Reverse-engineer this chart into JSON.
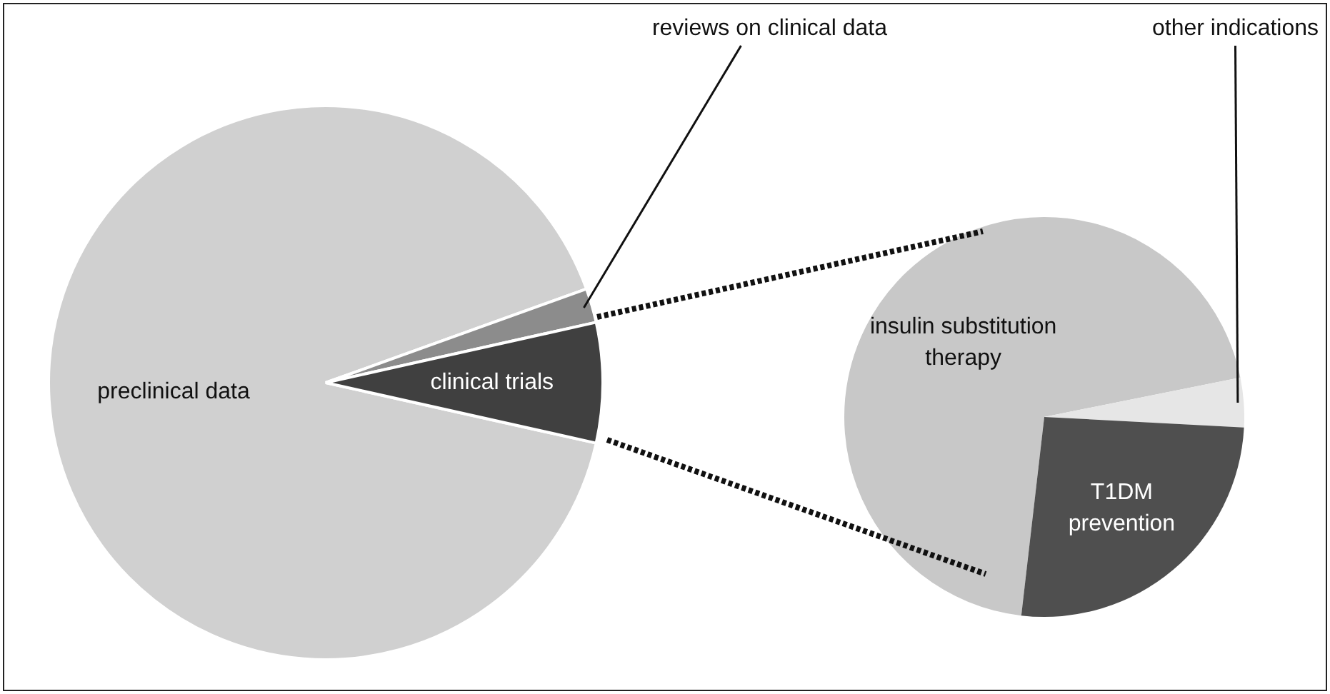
{
  "chart_data": [
    {
      "type": "pie",
      "categories": [
        "preclinical data",
        "reviews on clinical data",
        "clinical trials"
      ],
      "values": [
        91,
        2,
        7
      ],
      "colors": [
        "#d0d0d0",
        "#8c8c8c",
        "#404040"
      ],
      "legend": false
    },
    {
      "type": "pie",
      "categories": [
        "insulin substitution therapy",
        "other indications",
        "T1DM prevention"
      ],
      "values": [
        70,
        4,
        26
      ],
      "colors": [
        "#c8c8c8",
        "#e6e6e6",
        "#4f4f4f"
      ],
      "legend": false
    }
  ]
}
